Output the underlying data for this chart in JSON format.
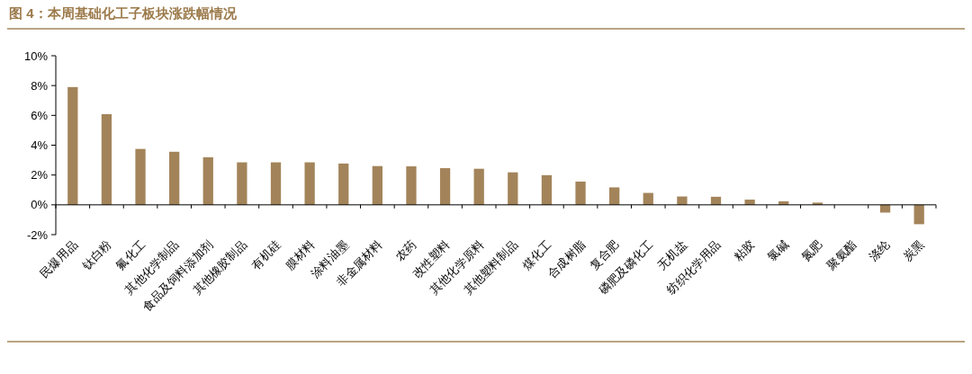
{
  "chart_data": {
    "type": "bar",
    "title": "图 4：本周基础化工子板块涨跌幅情况",
    "categories": [
      "民爆用品",
      "钛白粉",
      "氟化工",
      "其他化学制品",
      "食品及饲料添加剂",
      "其他橡胶制品",
      "有机硅",
      "膜材料",
      "涂料油墨",
      "非金属材料",
      "农药",
      "改性塑料",
      "其他化学原料",
      "其他塑料制品",
      "煤化工",
      "合成树脂",
      "复合肥",
      "磷肥及磷化工",
      "无机盐",
      "纺织化学用品",
      "粘胶",
      "氯碱",
      "氮肥",
      "聚氨酯",
      "涤纶",
      "炭黑"
    ],
    "values": [
      7.9,
      6.08,
      3.75,
      3.56,
      3.19,
      2.85,
      2.85,
      2.85,
      2.77,
      2.6,
      2.58,
      2.46,
      2.42,
      2.18,
      1.99,
      1.56,
      1.17,
      0.8,
      0.56,
      0.54,
      0.35,
      0.24,
      0.15,
      0,
      -0.52,
      -1.3
    ],
    "color": "#a3845a",
    "ylim": [
      -2,
      10
    ],
    "yticks": [
      {
        "value": -2,
        "label": "-2%"
      },
      {
        "value": 0,
        "label": "0%"
      },
      {
        "value": 2,
        "label": "2%"
      },
      {
        "value": 4,
        "label": "4%"
      },
      {
        "value": 6,
        "label": "6%"
      },
      {
        "value": 8,
        "label": "8%"
      },
      {
        "value": 10,
        "label": "10%"
      }
    ],
    "tick_labels": "xy"
  }
}
